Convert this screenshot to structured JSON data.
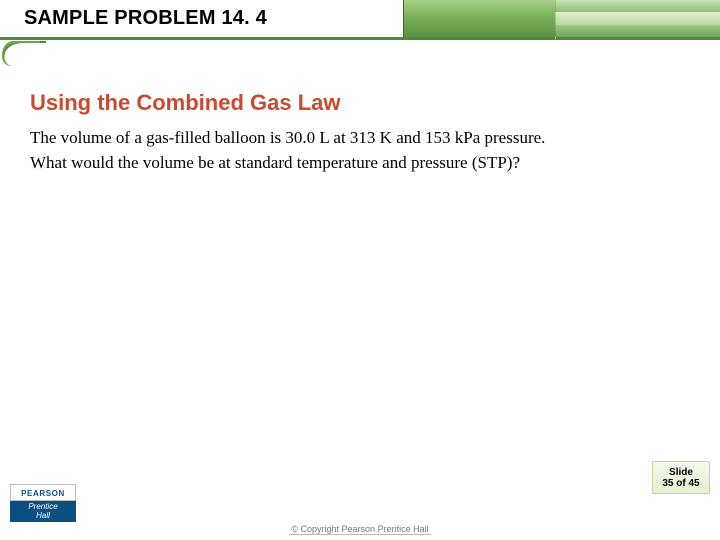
{
  "header": {
    "title": "SAMPLE PROBLEM 14. 4",
    "bar_colors": {
      "underline": "#4f8a3d",
      "main_gradient_top": "#a8d08a",
      "main_gradient_bottom": "#5a9243"
    }
  },
  "content": {
    "subtitle": "Using the Combined Gas Law",
    "subtitle_color": "#c94a2f",
    "body_line1": "The volume of a gas-filled balloon is 30.0 L at 313 K and 153 kPa pressure.",
    "body_line2": "What would the volume be at standard temperature and pressure (STP)?",
    "body_color": "#000000"
  },
  "slide_badge": {
    "line1": "Slide",
    "line2": "35 of 45"
  },
  "logo": {
    "brand_top": "PEARSON",
    "brand_bottom": "Prentice\nHall"
  },
  "footer": {
    "copyright": "© Copyright Pearson Prentice Hall"
  }
}
